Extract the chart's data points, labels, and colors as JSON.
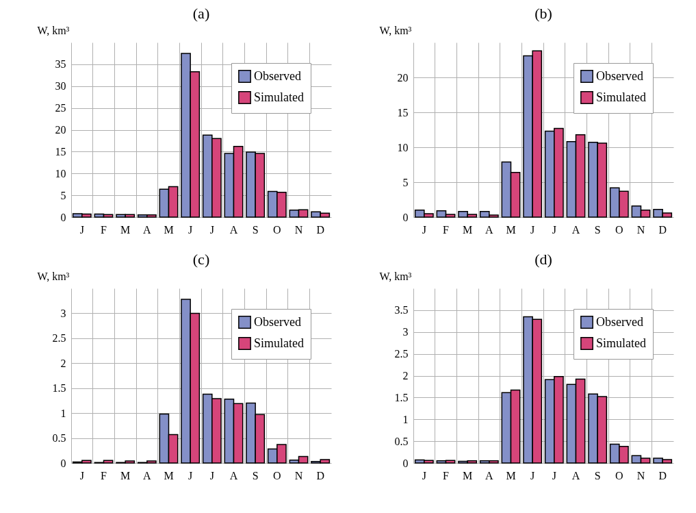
{
  "chart_data": [
    {
      "type": "bar",
      "title": "(a)",
      "ylabel": "W, km³",
      "categories": [
        "J",
        "F",
        "M",
        "A",
        "M",
        "J",
        "J",
        "A",
        "S",
        "O",
        "N",
        "D"
      ],
      "ylim": [
        0,
        40
      ],
      "yticks": [
        0,
        5,
        10,
        15,
        20,
        25,
        30,
        35
      ],
      "grid": true,
      "legend": "top right",
      "series": [
        {
          "name": "Observed",
          "color": "#8490c8",
          "values": [
            0.8,
            0.7,
            0.6,
            0.5,
            6.4,
            37.5,
            18.8,
            14.6,
            14.9,
            5.9,
            1.6,
            1.2
          ]
        },
        {
          "name": "Simulated",
          "color": "#d6457a",
          "values": [
            0.7,
            0.6,
            0.6,
            0.5,
            7.0,
            33.3,
            18.0,
            16.2,
            14.6,
            5.7,
            1.7,
            0.9
          ]
        }
      ]
    },
    {
      "type": "bar",
      "title": "(b)",
      "ylabel": "W, km³",
      "categories": [
        "J",
        "F",
        "M",
        "A",
        "M",
        "J",
        "J",
        "A",
        "S",
        "O",
        "N",
        "D"
      ],
      "ylim": [
        0,
        25
      ],
      "yticks": [
        0,
        5,
        10,
        15,
        20
      ],
      "grid": true,
      "legend": "top right",
      "series": [
        {
          "name": "Observed",
          "color": "#8490c8",
          "values": [
            1.0,
            0.9,
            0.8,
            0.8,
            7.9,
            23.1,
            12.3,
            10.8,
            10.7,
            4.2,
            1.6,
            1.1
          ]
        },
        {
          "name": "Simulated",
          "color": "#d6457a",
          "values": [
            0.5,
            0.4,
            0.4,
            0.3,
            6.4,
            23.8,
            12.7,
            11.8,
            10.6,
            3.7,
            1.0,
            0.6
          ]
        }
      ]
    },
    {
      "type": "bar",
      "title": "(c)",
      "ylabel": "W, km³",
      "categories": [
        "J",
        "F",
        "M",
        "A",
        "M",
        "J",
        "J",
        "A",
        "S",
        "O",
        "N",
        "D"
      ],
      "ylim": [
        0,
        3.5
      ],
      "yticks": [
        0,
        0.5,
        1,
        1.5,
        2,
        2.5,
        3
      ],
      "grid": true,
      "legend": "top right",
      "series": [
        {
          "name": "Observed",
          "color": "#8490c8",
          "values": [
            0.02,
            0.01,
            0.01,
            0.01,
            0.98,
            3.28,
            1.38,
            1.28,
            1.2,
            0.28,
            0.06,
            0.03
          ]
        },
        {
          "name": "Simulated",
          "color": "#d6457a",
          "values": [
            0.05,
            0.05,
            0.04,
            0.04,
            0.57,
            3.0,
            1.29,
            1.19,
            0.97,
            0.37,
            0.13,
            0.07
          ]
        }
      ]
    },
    {
      "type": "bar",
      "title": "(d)",
      "ylabel": "W, km³",
      "categories": [
        "J",
        "F",
        "M",
        "A",
        "M",
        "J",
        "J",
        "A",
        "S",
        "O",
        "N",
        "D"
      ],
      "ylim": [
        0,
        4
      ],
      "yticks": [
        0,
        0.5,
        1,
        1.5,
        2,
        2.5,
        3,
        3.5
      ],
      "grid": true,
      "legend": "top right",
      "series": [
        {
          "name": "Observed",
          "color": "#8490c8",
          "values": [
            0.07,
            0.05,
            0.04,
            0.05,
            1.61,
            3.35,
            1.91,
            1.8,
            1.58,
            0.43,
            0.17,
            0.11
          ]
        },
        {
          "name": "Simulated",
          "color": "#d6457a",
          "values": [
            0.06,
            0.06,
            0.05,
            0.05,
            1.67,
            3.29,
            1.98,
            1.92,
            1.52,
            0.38,
            0.11,
            0.08
          ]
        }
      ]
    }
  ]
}
